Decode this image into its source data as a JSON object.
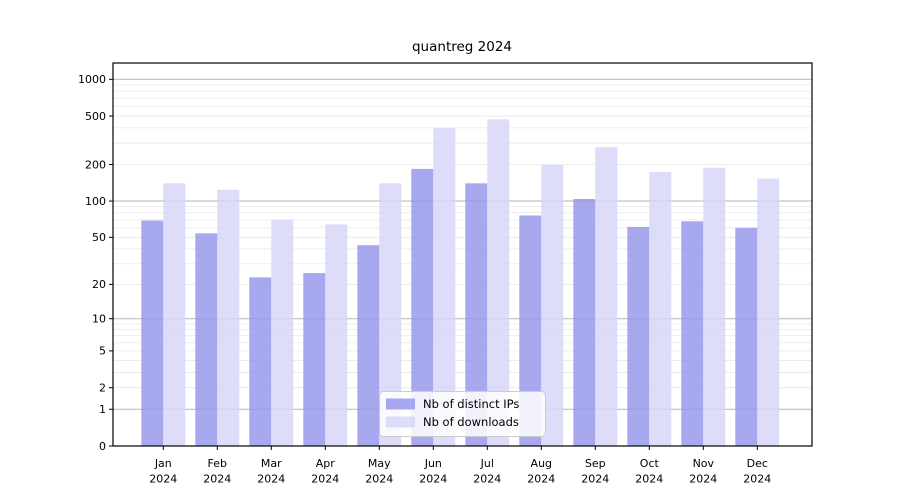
{
  "chart_data": {
    "type": "bar",
    "title": "quantreg 2024",
    "xlabel": "",
    "ylabel": "",
    "year": "2024",
    "categories": [
      "Jan",
      "Feb",
      "Mar",
      "Apr",
      "May",
      "Jun",
      "Jul",
      "Aug",
      "Sep",
      "Oct",
      "Nov",
      "Dec"
    ],
    "series": [
      {
        "name": "Nb of distinct IPs",
        "color": "#9595ec",
        "values": [
          69,
          54,
          23,
          25,
          43,
          184,
          140,
          76,
          104,
          61,
          68,
          60
        ]
      },
      {
        "name": "Nb of downloads",
        "color": "#d6d6f8",
        "values": [
          140,
          124,
          70,
          64,
          140,
          400,
          470,
          199,
          278,
          174,
          188,
          153
        ]
      }
    ],
    "bar_fill_opacity": 0.82,
    "yscale": "log1p",
    "ylim": [
      0,
      1360
    ],
    "ytick_labels": [
      "0",
      "1",
      "2",
      "5",
      "10",
      "20",
      "50",
      "100",
      "200",
      "500",
      "1000"
    ],
    "ytick_values": [
      0,
      1,
      2,
      5,
      10,
      20,
      50,
      100,
      200,
      500,
      1000
    ],
    "grid": {
      "major_values": [
        1,
        10,
        100,
        1000
      ],
      "minor_values": [
        2,
        3,
        4,
        5,
        6,
        7,
        8,
        9,
        20,
        30,
        40,
        50,
        60,
        70,
        80,
        90,
        200,
        300,
        400,
        500,
        600,
        700,
        800,
        900
      ],
      "major_color": "#b5b5b5",
      "minor_color": "#e9e9e9"
    },
    "legend": {
      "position": "lower center",
      "entries": [
        "Nb of distinct IPs",
        "Nb of downloads"
      ],
      "box_fill": "#ffffff",
      "box_border": "#cccccc"
    },
    "spine_color": "#000000",
    "background_color": "#ffffff"
  }
}
